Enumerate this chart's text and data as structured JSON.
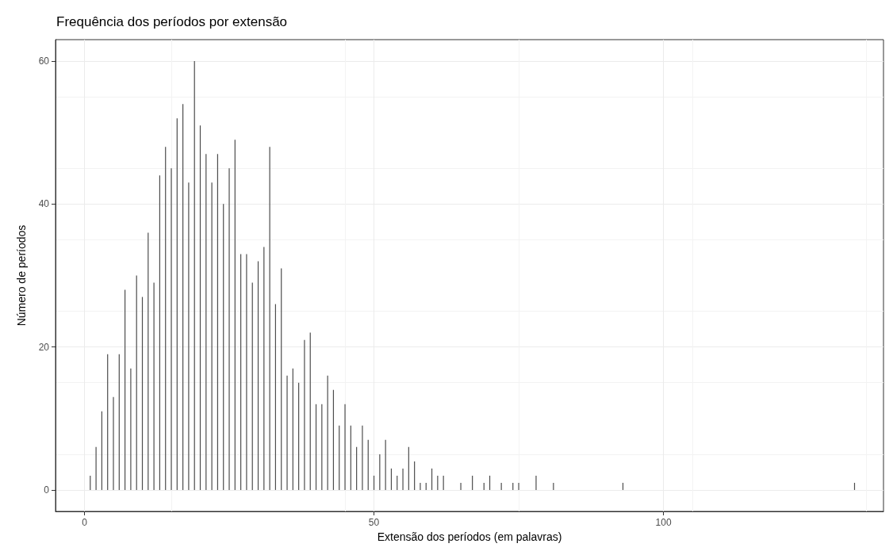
{
  "chart_data": {
    "type": "bar",
    "title": "Frequência dos períodos por extensão",
    "xlabel": "Extensão dos períodos (em palavras)",
    "ylabel": "Número de períodos",
    "x": [
      1,
      2,
      3,
      4,
      5,
      6,
      7,
      8,
      9,
      10,
      11,
      12,
      13,
      14,
      15,
      16,
      17,
      18,
      19,
      20,
      21,
      22,
      23,
      24,
      25,
      26,
      27,
      28,
      29,
      30,
      31,
      32,
      33,
      34,
      35,
      36,
      37,
      38,
      39,
      40,
      41,
      42,
      43,
      44,
      45,
      46,
      47,
      48,
      49,
      50,
      51,
      52,
      53,
      54,
      55,
      56,
      57,
      58,
      59,
      60,
      61,
      62,
      65,
      67,
      69,
      70,
      72,
      74,
      75,
      78,
      81,
      93,
      133
    ],
    "values": [
      2,
      6,
      11,
      19,
      13,
      19,
      28,
      17,
      30,
      27,
      36,
      29,
      44,
      48,
      45,
      52,
      54,
      43,
      60,
      51,
      47,
      43,
      47,
      40,
      45,
      49,
      33,
      33,
      29,
      32,
      34,
      48,
      26,
      31,
      16,
      17,
      15,
      21,
      22,
      12,
      12,
      16,
      14,
      9,
      12,
      9,
      6,
      9,
      7,
      2,
      5,
      7,
      3,
      2,
      3,
      6,
      4,
      1,
      1,
      3,
      2,
      2,
      1,
      2,
      1,
      2,
      1,
      1,
      1,
      2,
      1,
      1,
      1
    ],
    "color": "#4d4d4d",
    "xlim": [
      -5,
      138
    ],
    "xticks": [
      0,
      50,
      100
    ],
    "ylim": [
      -3,
      63
    ],
    "yticks": [
      0,
      20,
      40,
      60
    ],
    "grid": true
  }
}
